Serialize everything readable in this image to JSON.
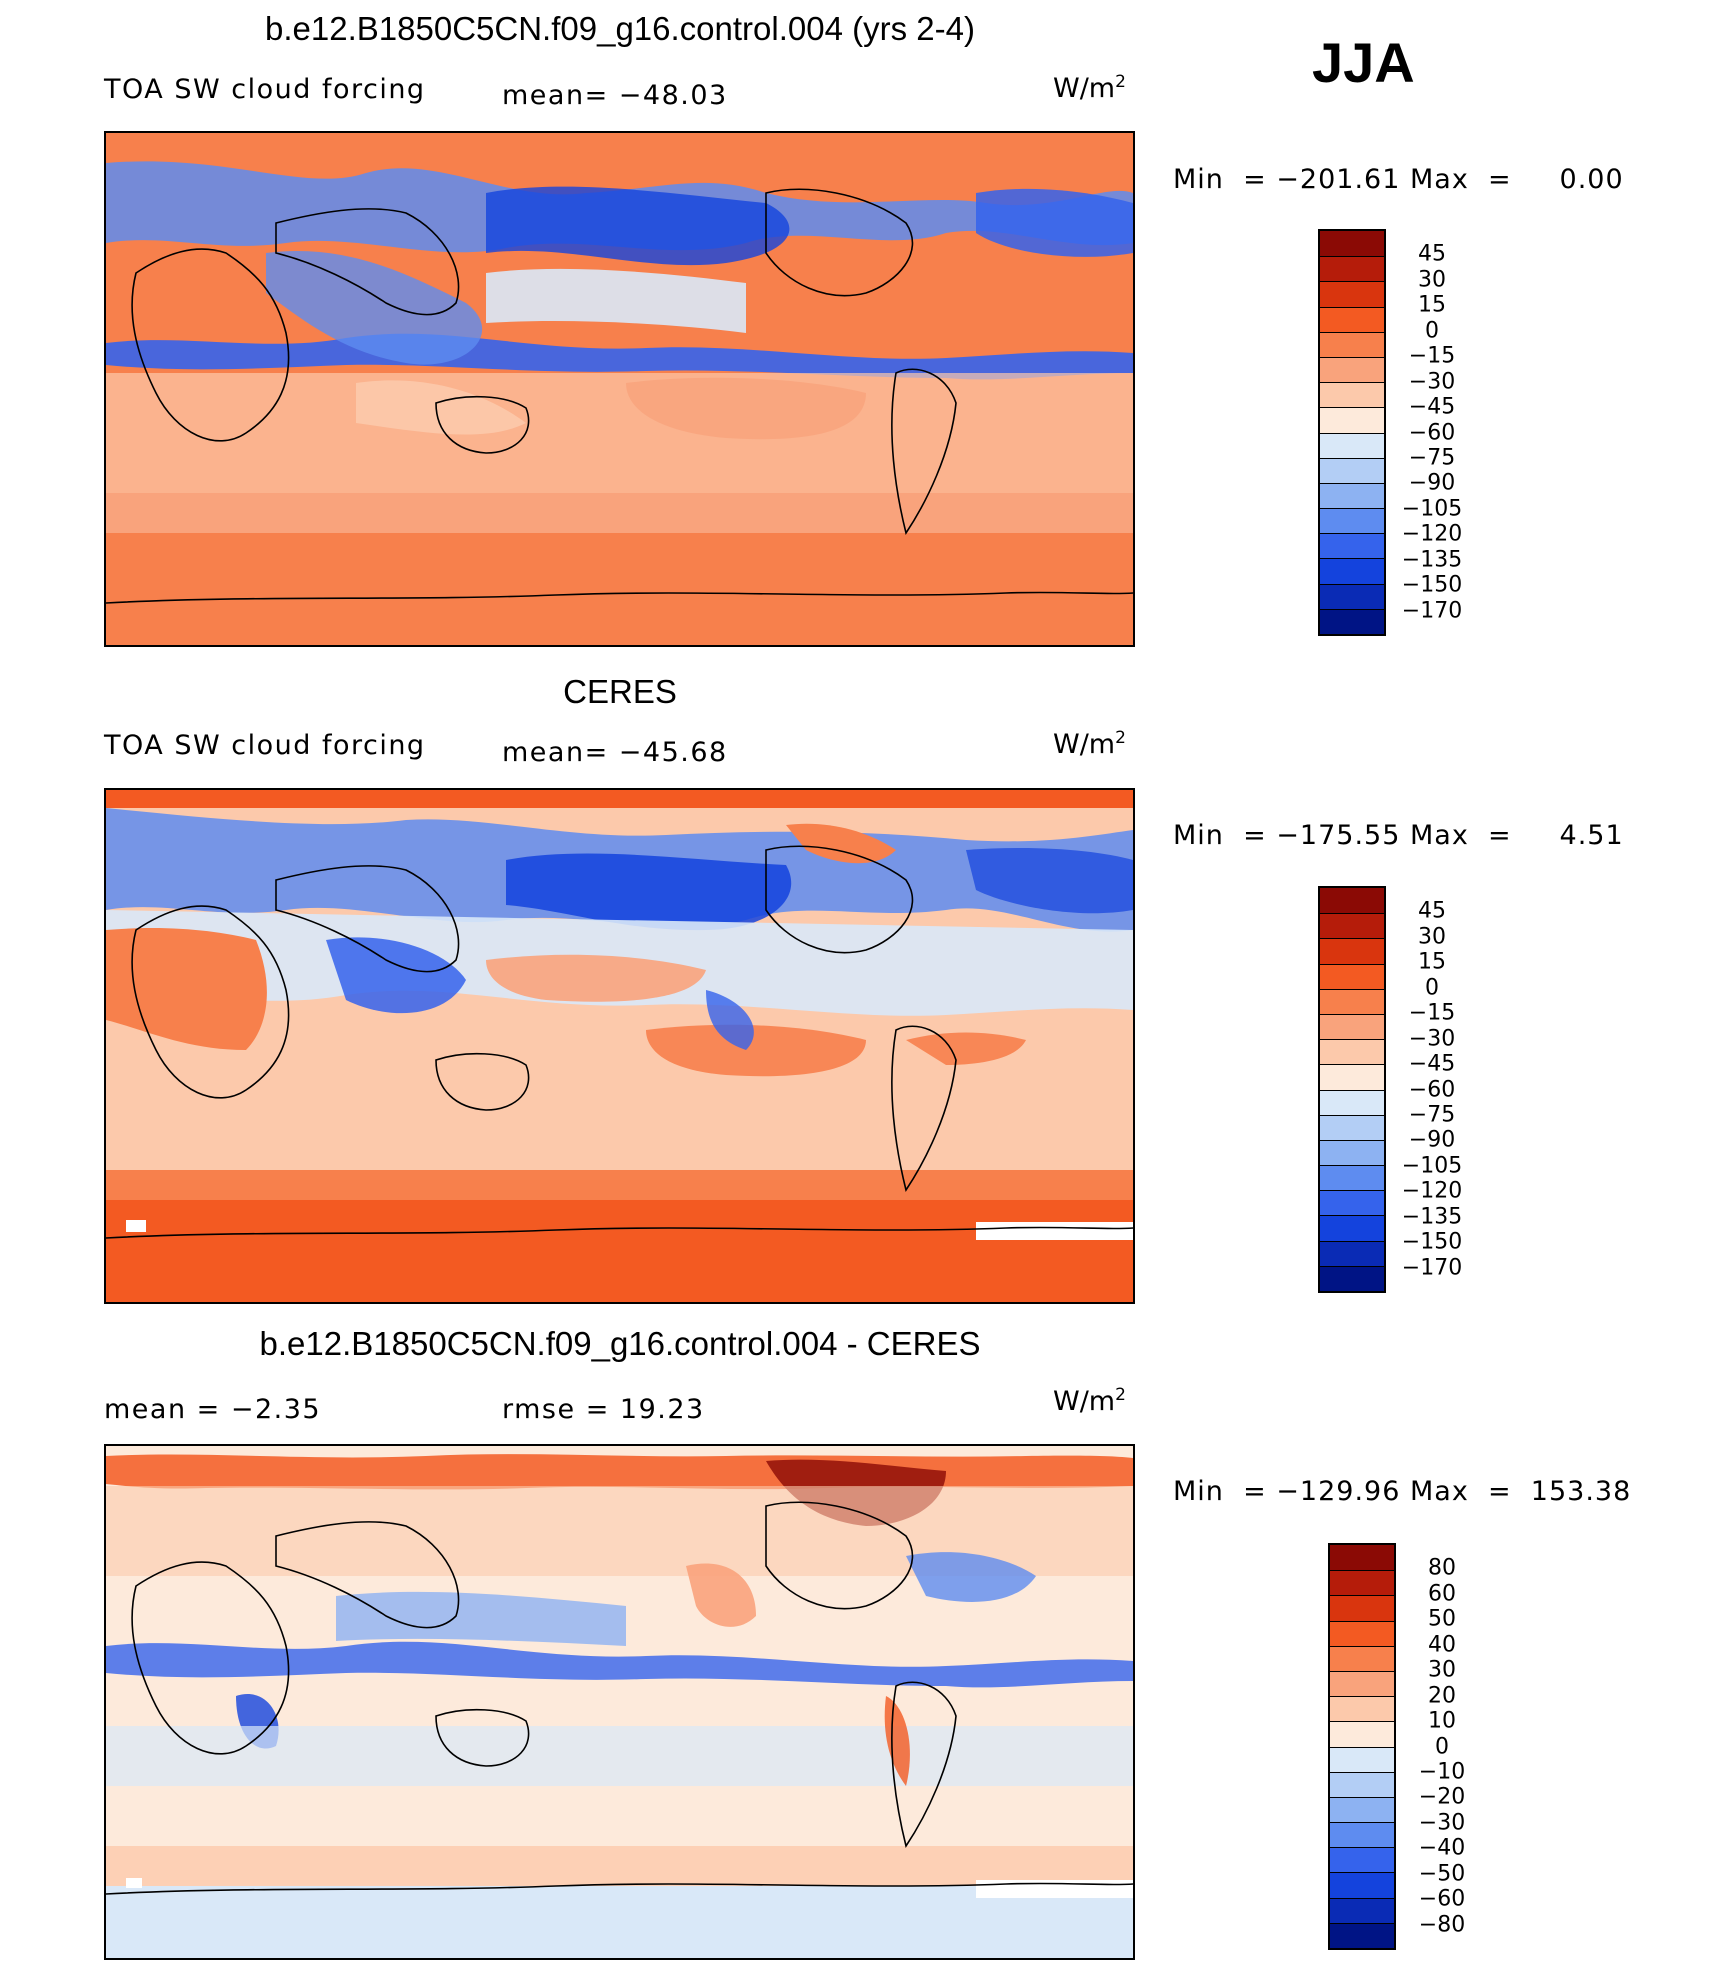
{
  "panels": [
    {
      "title": "b.e12.B1850C5CN.f09_g16.control.004 (yrs 2-4)",
      "left_text": "TOA SW cloud forcing",
      "mid_text": "mean= −48.03",
      "units": "W/m",
      "units_exp": "2",
      "min_label": "Min",
      "min_value": "−201.61",
      "max_label": "Max",
      "max_value": "0.00",
      "colorbar": {
        "levels": [
          "45",
          "30",
          "15",
          "0",
          "−15",
          "−30",
          "−45",
          "−60",
          "−75",
          "−90",
          "−105",
          "−120",
          "−135",
          "−150",
          "−170"
        ],
        "colors": [
          "#8b0a05",
          "#b51c0a",
          "#d9350e",
          "#f35a22",
          "#f7804c",
          "#f9a37c",
          "#fcc9ab",
          "#fdeadb",
          "#d9e8f8",
          "#b3cef5",
          "#8db2f2",
          "#5e8cf0",
          "#3563ec",
          "#1443dd",
          "#0a2bb5",
          "#001485"
        ]
      }
    },
    {
      "title": "CERES",
      "left_text": "TOA SW cloud forcing",
      "mid_text": "mean= −45.68",
      "units": "W/m",
      "units_exp": "2",
      "min_label": "Min",
      "min_value": "−175.55",
      "max_label": "Max",
      "max_value": "4.51",
      "colorbar": {
        "levels": [
          "45",
          "30",
          "15",
          "0",
          "−15",
          "−30",
          "−45",
          "−60",
          "−75",
          "−90",
          "−105",
          "−120",
          "−135",
          "−150",
          "−170"
        ],
        "colors": [
          "#8b0a05",
          "#b51c0a",
          "#d9350e",
          "#f35a22",
          "#f7804c",
          "#f9a37c",
          "#fcc9ab",
          "#fdeadb",
          "#d9e8f8",
          "#b3cef5",
          "#8db2f2",
          "#5e8cf0",
          "#3563ec",
          "#1443dd",
          "#0a2bb5",
          "#001485"
        ]
      }
    },
    {
      "title": "b.e12.B1850C5CN.f09_g16.control.004 - CERES",
      "left_text": "mean =   −2.35",
      "mid_text": "rmse =   19.23",
      "units": "W/m",
      "units_exp": "2",
      "min_label": "Min",
      "min_value": "−129.96",
      "max_label": "Max",
      "max_value": "153.38",
      "colorbar": {
        "levels": [
          "80",
          "60",
          "50",
          "40",
          "30",
          "20",
          "10",
          "0",
          "−10",
          "−20",
          "−30",
          "−40",
          "−50",
          "−60",
          "−80"
        ],
        "colors": [
          "#8b0a05",
          "#b51c0a",
          "#d9350e",
          "#f35a22",
          "#f7804c",
          "#f9a37c",
          "#fcc9ab",
          "#fdeadb",
          "#d9e8f8",
          "#b3cef5",
          "#8db2f2",
          "#5e8cf0",
          "#3563ec",
          "#1443dd",
          "#0a2bb5",
          "#001485"
        ]
      }
    }
  ],
  "season": "JJA"
}
